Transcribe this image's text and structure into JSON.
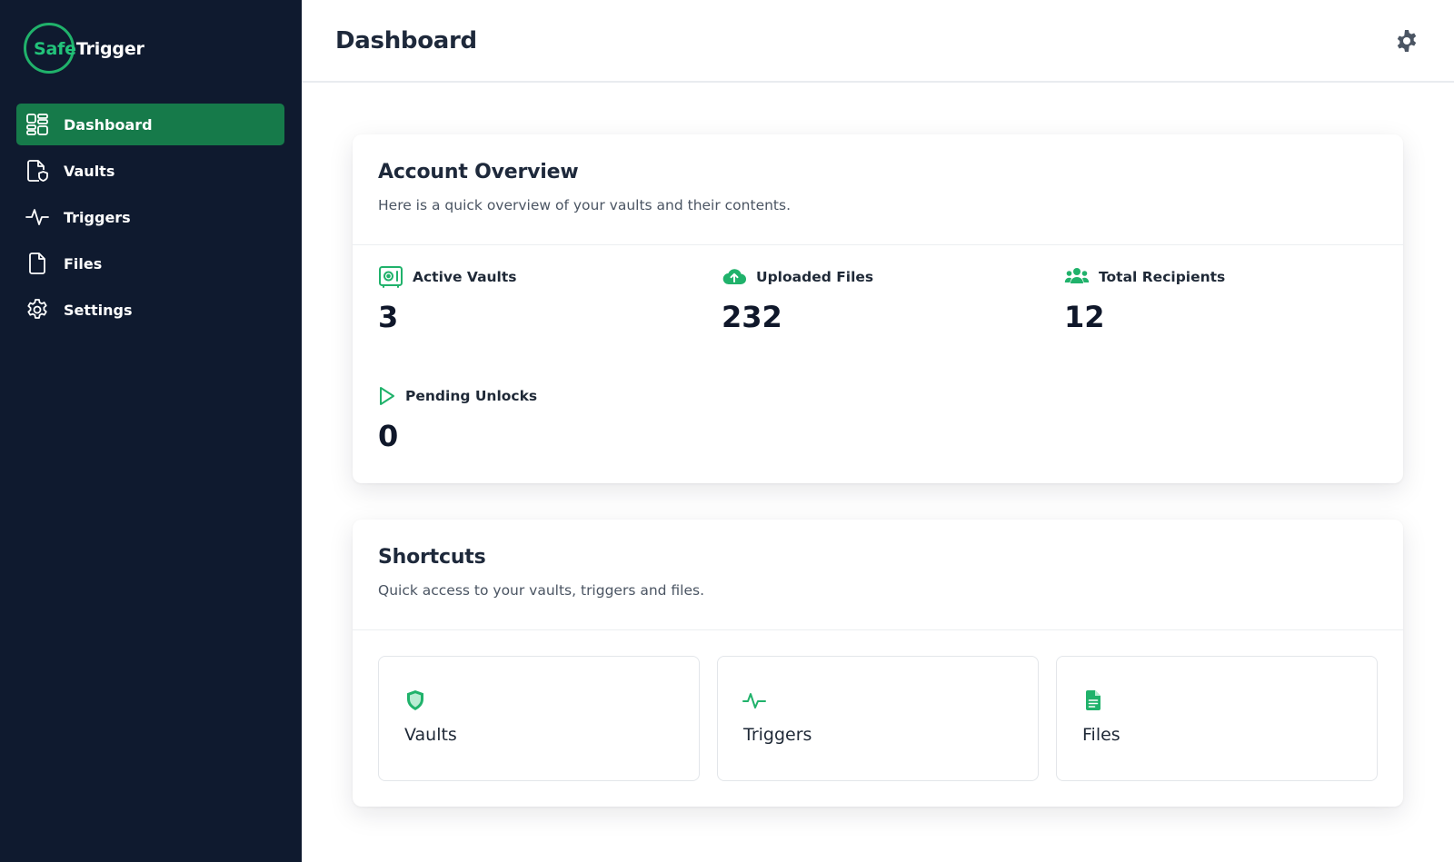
{
  "brand": {
    "name_part1": "Safe",
    "name_part2": "Trigger",
    "accent_color": "#22c37a"
  },
  "sidebar": {
    "items": [
      {
        "label": "Dashboard",
        "icon": "dashboard-grid-icon",
        "active": true
      },
      {
        "label": "Vaults",
        "icon": "file-shield-icon",
        "active": false
      },
      {
        "label": "Triggers",
        "icon": "pulse-icon",
        "active": false
      },
      {
        "label": "Files",
        "icon": "file-icon",
        "active": false
      },
      {
        "label": "Settings",
        "icon": "gear-icon",
        "active": false
      }
    ]
  },
  "header": {
    "title": "Dashboard",
    "settings_icon": "gear-icon"
  },
  "overview": {
    "title": "Account Overview",
    "subtitle": "Here is a quick overview of your vaults and their contents.",
    "stats": [
      {
        "label": "Active Vaults",
        "value": "3",
        "icon": "safe-icon"
      },
      {
        "label": "Uploaded Files",
        "value": "232",
        "icon": "cloud-upload-icon"
      },
      {
        "label": "Total Recipients",
        "value": "12",
        "icon": "users-icon"
      },
      {
        "label": "Pending Unlocks",
        "value": "0",
        "icon": "play-icon"
      }
    ]
  },
  "shortcuts": {
    "title": "Shortcuts",
    "subtitle": "Quick access to your vaults, triggers and files.",
    "items": [
      {
        "label": "Vaults",
        "icon": "shield-icon"
      },
      {
        "label": "Triggers",
        "icon": "pulse-icon"
      },
      {
        "label": "Files",
        "icon": "document-icon"
      }
    ]
  },
  "colors": {
    "sidebar_bg": "#0f1a2f",
    "active_nav": "#167a4a",
    "green": "#20b26b"
  }
}
